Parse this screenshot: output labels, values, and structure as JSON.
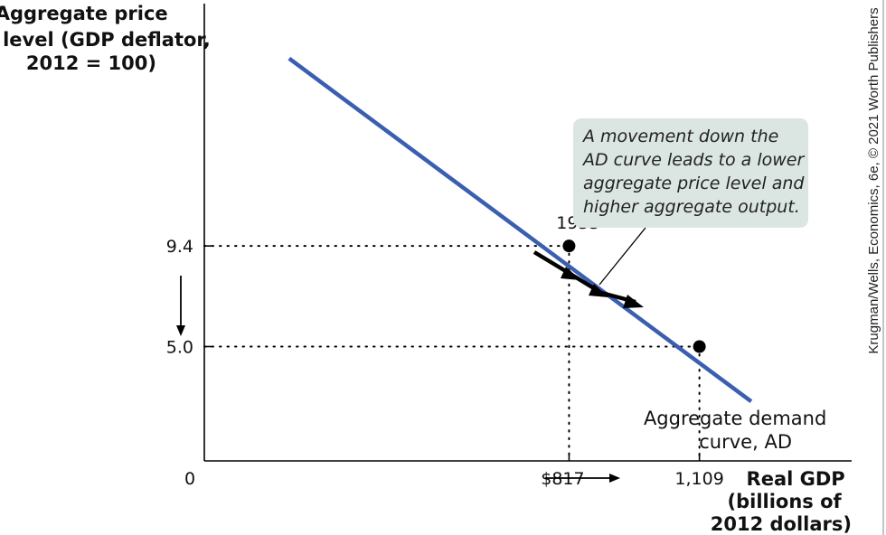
{
  "chart_data": {
    "type": "line",
    "title": "",
    "ylabel": [
      "Aggregate price",
      "level (GDP deflator,",
      "2012 = 100)"
    ],
    "xlabel": [
      "Real GDP",
      "(billions of",
      "2012 dollars)"
    ],
    "origin_label": "0",
    "xlim": [
      0,
      1450
    ],
    "ylim": [
      0,
      20
    ],
    "x_ticks": [
      {
        "value": 817,
        "label": "$817"
      },
      {
        "value": 1109,
        "label": "1,109"
      }
    ],
    "y_ticks": [
      {
        "value": 9.4,
        "label": "9.4"
      },
      {
        "value": 5.0,
        "label": "5.0"
      }
    ],
    "series": [
      {
        "name": "Aggregate demand curve, AD",
        "color": "#3b5fb0",
        "points": [
          [
            190,
            17.6
          ],
          [
            1225,
            2.6
          ]
        ]
      }
    ],
    "points": [
      {
        "x": 817,
        "y": 9.4,
        "label": "1933"
      },
      {
        "x": 1109,
        "y": 5.0,
        "label": ""
      }
    ],
    "curve_label": [
      "Aggregate demand",
      "curve, AD"
    ],
    "annotation": [
      "A movement down the",
      "AD curve leads to a lower",
      "aggregate price level and",
      "higher aggregate output."
    ],
    "credit": "Krugman/Wells, Economics, 6e, © 2021 Worth Publishers",
    "colors": {
      "curve": "#3b5fb0",
      "annotation_box": "#dbe6e3",
      "axes": "#000000"
    },
    "grid": false
  }
}
